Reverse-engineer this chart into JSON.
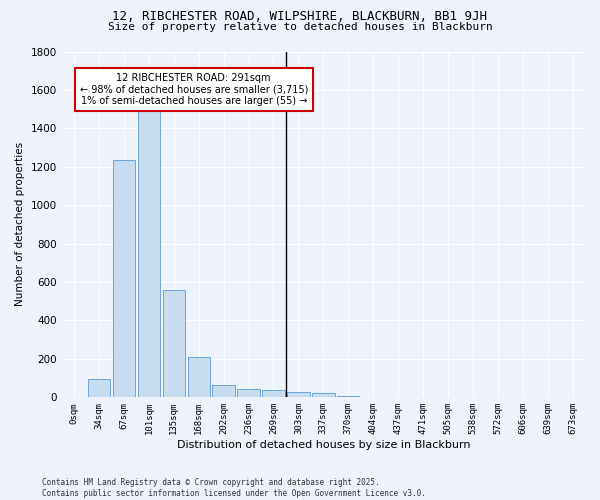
{
  "title": "12, RIBCHESTER ROAD, WILPSHIRE, BLACKBURN, BB1 9JH",
  "subtitle": "Size of property relative to detached houses in Blackburn",
  "xlabel": "Distribution of detached houses by size in Blackburn",
  "ylabel": "Number of detached properties",
  "footer": "Contains HM Land Registry data © Crown copyright and database right 2025.\nContains public sector information licensed under the Open Government Licence v3.0.",
  "bar_labels": [
    "0sqm",
    "34sqm",
    "67sqm",
    "101sqm",
    "135sqm",
    "168sqm",
    "202sqm",
    "236sqm",
    "269sqm",
    "303sqm",
    "337sqm",
    "370sqm",
    "404sqm",
    "437sqm",
    "471sqm",
    "505sqm",
    "538sqm",
    "572sqm",
    "606sqm",
    "639sqm",
    "673sqm"
  ],
  "bar_values": [
    0,
    95,
    1235,
    1515,
    560,
    210,
    65,
    45,
    38,
    30,
    22,
    7,
    0,
    0,
    0,
    0,
    0,
    0,
    0,
    0,
    0
  ],
  "bar_color": "#c8dcf0",
  "bar_edgecolor": "#5b9bd5",
  "bg_color": "#edf2fb",
  "grid_color": "#ffffff",
  "property_line_x": 8.5,
  "annotation_text": "12 RIBCHESTER ROAD: 291sqm\n← 98% of detached houses are smaller (3,715)\n1% of semi-detached houses are larger (55) →",
  "annotation_box_color": "#cc0000",
  "ylim": [
    0,
    1800
  ],
  "yticks": [
    0,
    200,
    400,
    600,
    800,
    1000,
    1200,
    1400,
    1600,
    1800
  ]
}
